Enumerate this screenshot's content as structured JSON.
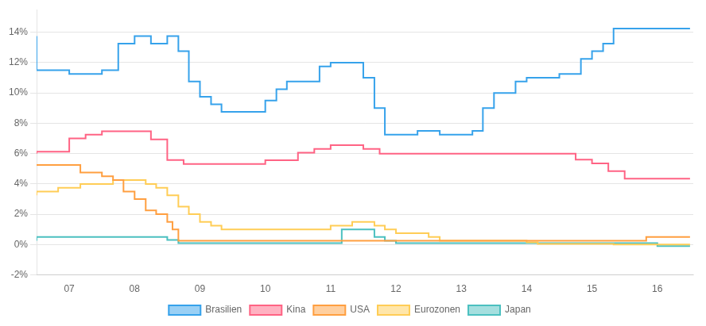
{
  "chart_data": {
    "type": "step",
    "xlim": [
      2006.5,
      2016.55
    ],
    "xticks": [
      {
        "value": 2007,
        "label": "07"
      },
      {
        "value": 2008,
        "label": "08"
      },
      {
        "value": 2009,
        "label": "09"
      },
      {
        "value": 2010,
        "label": "10"
      },
      {
        "value": 2011,
        "label": "11"
      },
      {
        "value": 2012,
        "label": "12"
      },
      {
        "value": 2013,
        "label": "13"
      },
      {
        "value": 2014,
        "label": "14"
      },
      {
        "value": 2015,
        "label": "15"
      },
      {
        "value": 2016,
        "label": "16"
      }
    ],
    "ylim": [
      -2,
      15.5
    ],
    "yticks": [
      {
        "value": -2,
        "label": "-2%"
      },
      {
        "value": 0,
        "label": "0%"
      },
      {
        "value": 2,
        "label": "2%"
      },
      {
        "value": 4,
        "label": "4%"
      },
      {
        "value": 6,
        "label": "6%"
      },
      {
        "value": 8,
        "label": "8%"
      },
      {
        "value": 10,
        "label": "10%"
      },
      {
        "value": 12,
        "label": "12%"
      },
      {
        "value": 14,
        "label": "14%"
      }
    ],
    "grid": "y",
    "legend": "bottom",
    "series": [
      {
        "name": "Brasilien",
        "x": [
          2006.5,
          2007.0,
          2007.25,
          2007.5,
          2007.75,
          2008.0,
          2008.25,
          2008.5,
          2008.67,
          2008.83,
          2009.0,
          2009.17,
          2009.33,
          2009.5,
          2009.67,
          2009.83,
          2010.0,
          2010.17,
          2010.33,
          2010.5,
          2010.67,
          2010.83,
          2011.0,
          2011.17,
          2011.33,
          2011.5,
          2011.67,
          2011.83,
          2012.0,
          2012.17,
          2012.33,
          2012.5,
          2012.67,
          2012.83,
          2013.0,
          2013.17,
          2013.33,
          2013.5,
          2013.67,
          2013.83,
          2014.0,
          2014.17,
          2014.33,
          2014.5,
          2014.67,
          2014.83,
          2015.0,
          2015.17,
          2015.33,
          2015.5,
          2015.67,
          2015.83,
          2016.0,
          2016.17,
          2016.33,
          2016.5
        ],
        "values": [
          13.75,
          11.5,
          11.25,
          11.25,
          11.5,
          13.25,
          13.75,
          13.25,
          13.75,
          12.75,
          10.75,
          9.75,
          9.25,
          8.75,
          8.75,
          8.75,
          8.75,
          9.5,
          10.25,
          10.75,
          10.75,
          10.75,
          11.75,
          12.0,
          12.0,
          12.0,
          11.0,
          9.0,
          7.25,
          7.25,
          7.25,
          7.5,
          7.5,
          7.25,
          7.25,
          7.25,
          7.5,
          9.0,
          10.0,
          10.0,
          10.75,
          11.0,
          11.0,
          11.0,
          11.25,
          11.25,
          12.25,
          12.75,
          13.25,
          14.25,
          14.25,
          14.25,
          14.25,
          14.25,
          14.25,
          14.25
        ]
      },
      {
        "name": "Kina",
        "x": [
          2006.5,
          2007.0,
          2007.25,
          2007.5,
          2007.75,
          2008.0,
          2008.25,
          2008.5,
          2008.75,
          2009.0,
          2009.25,
          2009.5,
          2009.75,
          2010.0,
          2010.25,
          2010.5,
          2010.75,
          2011.0,
          2011.25,
          2011.5,
          2011.75,
          2012.0,
          2012.25,
          2012.5,
          2012.75,
          2013.0,
          2013.25,
          2013.5,
          2013.75,
          2014.0,
          2014.25,
          2014.5,
          2014.75,
          2015.0,
          2015.25,
          2015.5,
          2015.75,
          2016.0,
          2016.25,
          2016.5
        ],
        "values": [
          6.0,
          6.12,
          7.0,
          7.25,
          7.47,
          7.47,
          7.47,
          6.93,
          5.58,
          5.31,
          5.31,
          5.31,
          5.31,
          5.31,
          5.56,
          5.56,
          6.06,
          6.31,
          6.56,
          6.56,
          6.31,
          6.0,
          6.0,
          6.0,
          6.0,
          6.0,
          6.0,
          6.0,
          6.0,
          6.0,
          6.0,
          6.0,
          6.0,
          5.6,
          5.35,
          4.85,
          4.35,
          4.35,
          4.35,
          4.35
        ]
      },
      {
        "name": "USA",
        "x": [
          2006.5,
          2006.67,
          2006.83,
          2007.0,
          2007.17,
          2007.33,
          2007.5,
          2007.67,
          2007.83,
          2008.0,
          2008.17,
          2008.33,
          2008.5,
          2008.58,
          2008.67,
          2008.83,
          2009.0,
          2009.17,
          2009.33,
          2009.5,
          2009.67,
          2009.83,
          2010.0,
          2011.0,
          2015.83,
          2016.0,
          2016.5
        ],
        "values": [
          5.25,
          5.25,
          5.25,
          5.25,
          5.25,
          4.75,
          4.75,
          4.5,
          4.25,
          3.5,
          3.0,
          2.25,
          2.0,
          1.5,
          1.0,
          0.25,
          0.25,
          0.25,
          0.25,
          0.25,
          0.25,
          0.25,
          0.25,
          0.25,
          0.25,
          0.5,
          0.5
        ]
      },
      {
        "name": "Eurozonen",
        "x": [
          2006.5,
          2006.67,
          2006.83,
          2007.0,
          2007.17,
          2007.33,
          2007.5,
          2007.67,
          2007.83,
          2008.0,
          2008.17,
          2008.33,
          2008.5,
          2008.67,
          2008.83,
          2009.0,
          2009.17,
          2009.33,
          2009.5,
          2009.67,
          2009.83,
          2010.0,
          2010.17,
          2010.33,
          2010.5,
          2010.67,
          2010.83,
          2011.0,
          2011.17,
          2011.33,
          2011.5,
          2011.67,
          2011.83,
          2012.0,
          2012.17,
          2012.33,
          2012.5,
          2012.67,
          2012.83,
          2013.0,
          2013.17,
          2013.33,
          2013.5,
          2013.67,
          2013.83,
          2014.0,
          2014.17,
          2014.33,
          2014.5,
          2014.67,
          2014.83,
          2015.0,
          2015.17,
          2015.33,
          2015.5,
          2015.67,
          2015.83,
          2016.0,
          2016.5
        ],
        "values": [
          3.25,
          3.5,
          3.5,
          3.75,
          3.75,
          4.0,
          4.0,
          4.0,
          4.25,
          4.25,
          4.25,
          4.0,
          3.75,
          3.25,
          2.5,
          2.0,
          1.5,
          1.25,
          1.0,
          1.0,
          1.0,
          1.0,
          1.0,
          1.0,
          1.0,
          1.0,
          1.0,
          1.0,
          1.25,
          1.25,
          1.5,
          1.5,
          1.25,
          1.0,
          0.75,
          0.75,
          0.75,
          0.5,
          0.25,
          0.25,
          0.25,
          0.25,
          0.25,
          0.25,
          0.25,
          0.25,
          0.15,
          0.05,
          0.05,
          0.05,
          0.05,
          0.05,
          0.05,
          0.05,
          0.0,
          0.0,
          0.0,
          0.0,
          0.0
        ]
      },
      {
        "name": "Japan",
        "x": [
          2006.5,
          2007.0,
          2007.25,
          2007.5,
          2007.67,
          2007.83,
          2008.0,
          2008.17,
          2008.33,
          2008.5,
          2008.67,
          2008.83,
          2009.0,
          2009.25,
          2009.5,
          2009.75,
          2010.0,
          2010.25,
          2010.5,
          2010.75,
          2011.0,
          2011.17,
          2011.33,
          2011.5,
          2011.67,
          2011.83,
          2012.0,
          2012.25,
          2012.5,
          2012.75,
          2013.0,
          2013.25,
          2013.5,
          2013.75,
          2014.0,
          2014.25,
          2014.5,
          2014.75,
          2015.0,
          2015.25,
          2015.5,
          2015.75,
          2016.0,
          2016.17,
          2016.5
        ],
        "values": [
          0.25,
          0.5,
          0.5,
          0.5,
          0.5,
          0.5,
          0.5,
          0.5,
          0.5,
          0.5,
          0.3,
          0.1,
          0.1,
          0.1,
          0.1,
          0.1,
          0.1,
          0.1,
          0.1,
          0.1,
          0.1,
          0.1,
          1.0,
          1.0,
          1.0,
          0.5,
          0.25,
          0.1,
          0.1,
          0.1,
          0.1,
          0.1,
          0.1,
          0.1,
          0.1,
          0.1,
          0.1,
          0.1,
          0.1,
          0.1,
          0.1,
          0.1,
          0.1,
          -0.1,
          -0.1
        ]
      }
    ]
  }
}
